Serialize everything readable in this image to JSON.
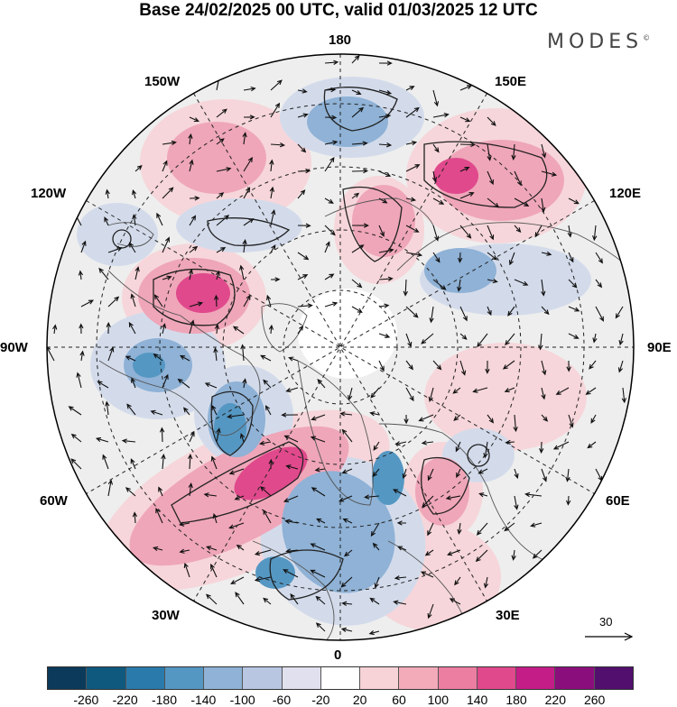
{
  "header": {
    "title": "Base 24/02/2025 00 UTC, valid 01/03/2025 12 UTC",
    "brand": "MODES",
    "brand_mark": "©"
  },
  "map": {
    "projection": "north polar stereographic",
    "longitude_labels": {
      "top": "180",
      "bottom": "0",
      "left": "90W",
      "right": "90E",
      "upper_left_1": "150W",
      "upper_left_2": "120W",
      "lower_left_1": "60W",
      "lower_left_2": "30W",
      "upper_right_1": "150E",
      "upper_right_2": "120E",
      "lower_right_1": "60E",
      "lower_right_2": "30E"
    },
    "reference_vector_value": "30"
  },
  "colorbar": {
    "ticks": [
      "-260",
      "-220",
      "-180",
      "-140",
      "-100",
      "-60",
      "-20",
      "20",
      "60",
      "100",
      "140",
      "180",
      "220",
      "260"
    ],
    "colors": [
      "#0b3a5a",
      "#10597e",
      "#2a7aab",
      "#5597c3",
      "#8fb2d6",
      "#b8c6e2",
      "#e0e0ee",
      "#ffffff",
      "#f7d3d7",
      "#f3aab9",
      "#ec7ea2",
      "#e0498c",
      "#c41d87",
      "#8a0f7c",
      "#520f6e"
    ]
  }
}
